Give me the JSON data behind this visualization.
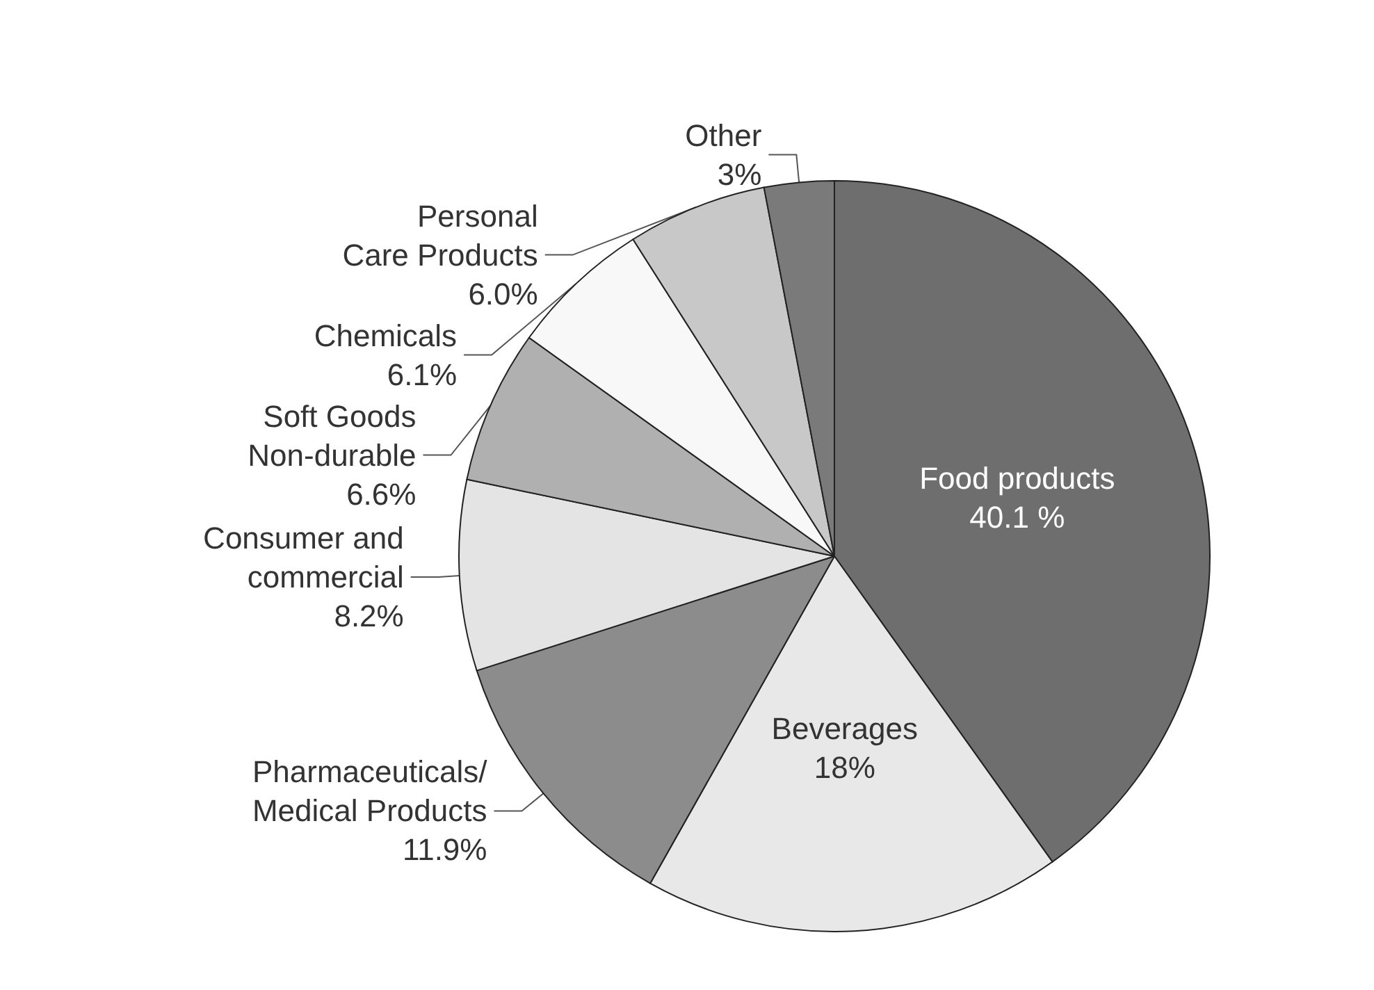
{
  "chart_data": {
    "type": "pie",
    "categories": [
      "Food products",
      "Beverages",
      "Pharmaceuticals/\nMedical Products",
      "Consumer and\ncommercial",
      "Soft Goods\nNon-durable",
      "Chemicals",
      "Personal\nCare Products",
      "Other"
    ],
    "values": [
      40.1,
      18,
      11.9,
      8.2,
      6.6,
      6.1,
      6.0,
      3
    ],
    "value_labels": [
      "40.1 %",
      "18%",
      "11.9%",
      "8.2%",
      "6.6%",
      "6.1%",
      "6.0%",
      "3%"
    ],
    "colors": [
      "#6e6e6e",
      "#e8e8e8",
      "#8c8c8c",
      "#e4e4e4",
      "#b0b0b0",
      "#f8f8f8",
      "#c8c8c8",
      "#7a7a7a"
    ],
    "legend": false
  }
}
